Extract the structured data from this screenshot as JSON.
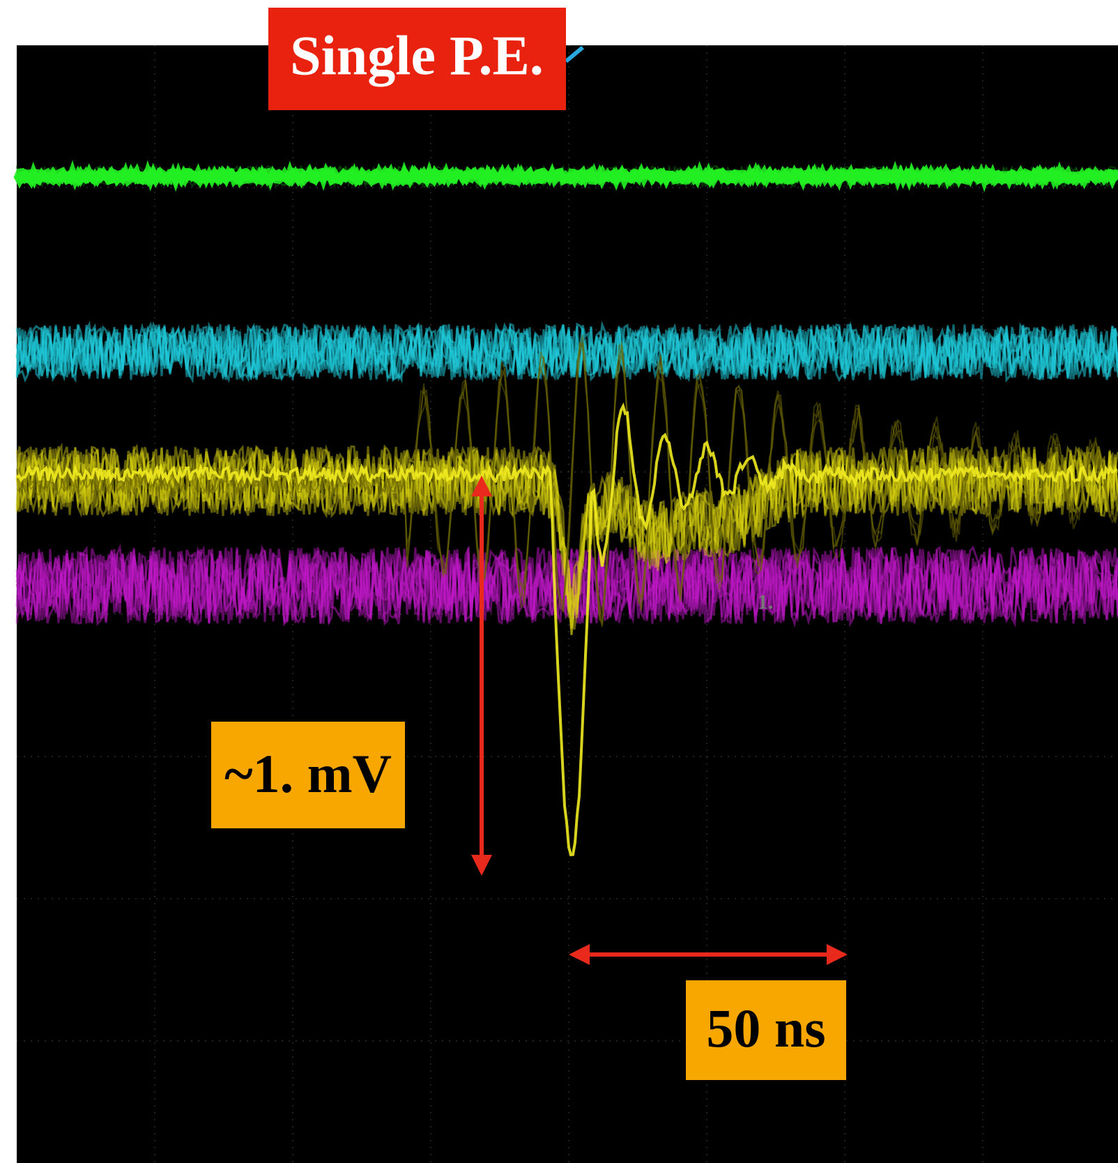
{
  "labels": {
    "title": "Single P.E.",
    "amplitude": "~1. mV",
    "time": "50 ns",
    "marker": "1."
  }
}
